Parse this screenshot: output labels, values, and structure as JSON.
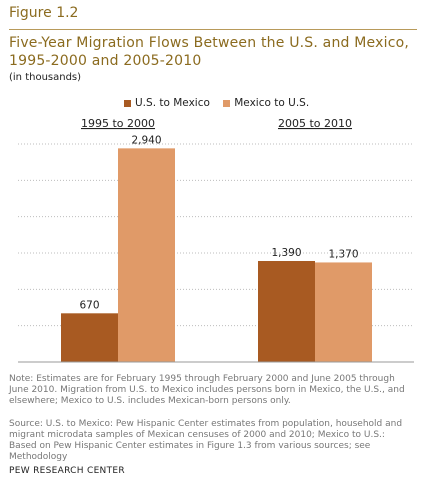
{
  "figure_label": "Figure 1.2",
  "title": "Five-Year Migration Flows Between the U.S. and Mexico, 1995-2000 and 2005-2010",
  "subtitle": "(in thousands)",
  "note": "Note: Estimates are for February 1995 through February 2000 and June 2005 through June 2010. Migration from U.S. to Mexico includes persons born in Mexico, the U.S., and elsewhere; Mexico to U.S. includes Mexican-born persons only.",
  "source": "Source: U.S. to Mexico: Pew Hispanic Center estimates from population, household and migrant microdata samples of Mexican censuses of 2000 and 2010; Mexico to U.S.: Based on Pew Hispanic Center estimates in Figure 1.3 from various sources; see Methodology",
  "organization": "PEW RESEARCH CENTER",
  "colors": {
    "us_to_mexico": "#a85a22",
    "mexico_to_us": "#e09a68",
    "gridline": "#bdbdbd"
  },
  "chart_data": {
    "type": "bar",
    "categories": [
      "1995 to 2000",
      "2005 to 2010"
    ],
    "series": [
      {
        "name": "U.S. to Mexico",
        "values": [
          670,
          1390
        ],
        "labels": [
          "670",
          "1,390"
        ]
      },
      {
        "name": "Mexico to U.S.",
        "values": [
          2940,
          1370
        ],
        "labels": [
          "2,940",
          "1,370"
        ]
      }
    ],
    "ylim": [
      0,
      3000
    ],
    "grid": true,
    "legend_position": "top",
    "y_tick_labels_shown": false
  }
}
